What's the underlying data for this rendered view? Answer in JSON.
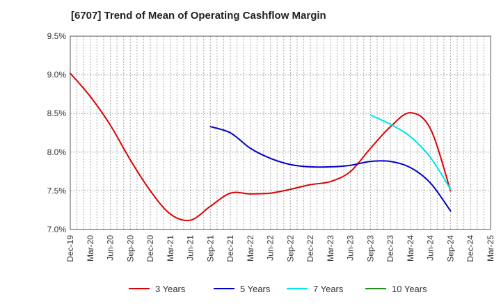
{
  "chart_data": {
    "type": "line",
    "title": "[6707]  Trend of Mean of Operating Cashflow Margin",
    "xlabel": "",
    "ylabel": "",
    "x": [
      "Dec-19",
      "Mar-20",
      "Jun-20",
      "Sep-20",
      "Dec-20",
      "Mar-21",
      "Jun-21",
      "Sep-21",
      "Dec-21",
      "Mar-22",
      "Jun-22",
      "Sep-22",
      "Dec-22",
      "Mar-23",
      "Jun-23",
      "Sep-23",
      "Dec-23",
      "Mar-24",
      "Jun-24",
      "Sep-24",
      "Dec-24",
      "Mar-25"
    ],
    "yticks": [
      "7.0%",
      "7.5%",
      "8.0%",
      "8.5%",
      "9.0%",
      "9.5%"
    ],
    "ylim": [
      7.0,
      9.5
    ],
    "grid": true,
    "legend_position": "bottom",
    "series": [
      {
        "name": "3 Years",
        "color": "#dd0000",
        "values": [
          9.02,
          8.72,
          8.35,
          7.9,
          7.5,
          7.2,
          7.12,
          7.3,
          7.47,
          7.46,
          7.47,
          7.52,
          7.58,
          7.62,
          7.75,
          8.05,
          8.33,
          8.51,
          8.3,
          7.5,
          null,
          null
        ]
      },
      {
        "name": "5 Years",
        "color": "#0000cc",
        "values": [
          null,
          null,
          null,
          null,
          null,
          null,
          null,
          8.33,
          8.25,
          8.05,
          7.92,
          7.84,
          7.81,
          7.81,
          7.83,
          7.88,
          7.88,
          7.8,
          7.6,
          7.24,
          null,
          null
        ]
      },
      {
        "name": "7 Years",
        "color": "#00e5e5",
        "values": [
          null,
          null,
          null,
          null,
          null,
          null,
          null,
          null,
          null,
          null,
          null,
          null,
          null,
          null,
          null,
          8.48,
          8.36,
          8.2,
          7.93,
          7.52,
          null,
          null
        ]
      },
      {
        "name": "10 Years",
        "color": "#228b22",
        "values": [
          null,
          null,
          null,
          null,
          null,
          null,
          null,
          null,
          null,
          null,
          null,
          null,
          null,
          null,
          null,
          null,
          null,
          null,
          null,
          null,
          null,
          null
        ]
      }
    ]
  }
}
